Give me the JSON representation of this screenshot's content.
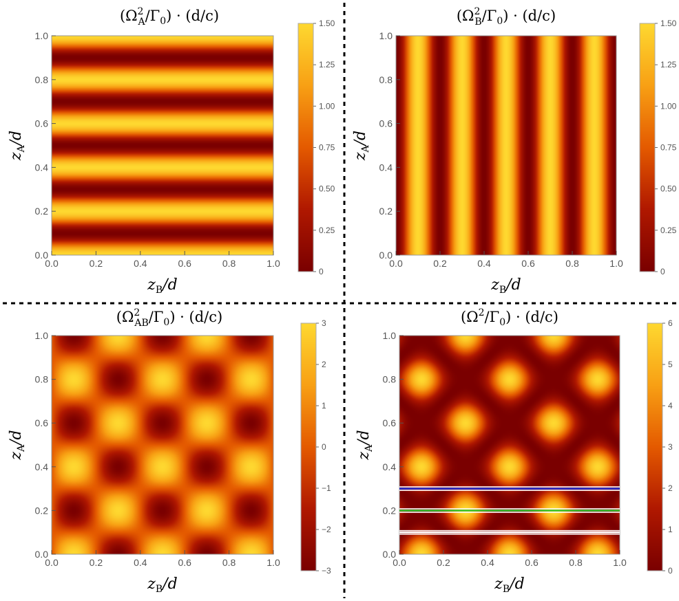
{
  "chart_data": [
    {
      "type": "heatmap",
      "title": "(Ω²_A/Γ₀) · (d/c)",
      "title_parts": {
        "pre": "(Ω",
        "sup": "2",
        "sub": "A",
        "post": "/Γ",
        "sub2": "0",
        "tail": ") · (d/c)"
      },
      "xlabel": {
        "main": "z",
        "sub": "B",
        "tail": "/d"
      },
      "ylabel": {
        "main": "z",
        "sub": "A",
        "tail": "/d"
      },
      "xlim": [
        0,
        1
      ],
      "ylim": [
        0,
        1
      ],
      "x_ticks": [
        "0.0",
        "0.2",
        "0.4",
        "0.6",
        "0.8",
        "1.0"
      ],
      "y_ticks": [
        "0.0",
        "0.2",
        "0.4",
        "0.6",
        "0.8",
        "1.0"
      ],
      "colorbar": {
        "min": 0,
        "max": 1.5,
        "ticks": [
          "0",
          "0.25",
          "0.50",
          "0.75",
          "1.00",
          "1.25",
          "1.50"
        ]
      },
      "pattern": "horizontal stripes: 1.5·cos²(5πz_A/d)"
    },
    {
      "type": "heatmap",
      "title": "(Ω²_B/Γ₀) · (d/c)",
      "title_parts": {
        "pre": "(Ω",
        "sup": "2",
        "sub": "B",
        "post": "/Γ",
        "sub2": "0",
        "tail": ") · (d/c)"
      },
      "xlabel": {
        "main": "z",
        "sub": "B",
        "tail": "/d"
      },
      "ylabel": {
        "main": "z",
        "sub": "A",
        "tail": "/d"
      },
      "xlim": [
        0,
        1
      ],
      "ylim": [
        0,
        1
      ],
      "x_ticks": [
        "0.0",
        "0.2",
        "0.4",
        "0.6",
        "0.8",
        "1.0"
      ],
      "y_ticks": [
        "0.0",
        "0.2",
        "0.4",
        "0.6",
        "0.8",
        "1.0"
      ],
      "colorbar": {
        "min": 0,
        "max": 1.5,
        "ticks": [
          "0",
          "0.25",
          "0.50",
          "0.75",
          "1.00",
          "1.25",
          "1.50"
        ]
      },
      "pattern": "vertical stripes: 1.5·sin²(5πz_B/d)"
    },
    {
      "type": "heatmap",
      "title": "(Ω²_AB/Γ₀) · (d/c)",
      "title_parts": {
        "pre": "(Ω",
        "sup": "2",
        "sub": "AB",
        "post": "/Γ",
        "sub2": "0",
        "tail": ") · (d/c)"
      },
      "xlabel": {
        "main": "z",
        "sub": "B",
        "tail": "/d"
      },
      "ylabel": {
        "main": "z",
        "sub": "A",
        "tail": "/d"
      },
      "xlim": [
        0,
        1
      ],
      "ylim": [
        0,
        1
      ],
      "x_ticks": [
        "0.0",
        "0.2",
        "0.4",
        "0.6",
        "0.8",
        "1.0"
      ],
      "y_ticks": [
        "0.0",
        "0.2",
        "0.4",
        "0.6",
        "0.8",
        "1.0"
      ],
      "colorbar": {
        "min": -3,
        "max": 3,
        "ticks": [
          "−3",
          "−2",
          "−1",
          "0",
          "1",
          "2",
          "3"
        ]
      },
      "pattern": "checkerboard: 3·cos(5πz_A/d)·sin(5πz_B/d)"
    },
    {
      "type": "heatmap",
      "title": "(Ω²/Γ₀) · (d/c)",
      "title_parts": {
        "pre": "(Ω",
        "sup": "2",
        "sub": "",
        "post": "/Γ",
        "sub2": "0",
        "tail": ") · (d/c)"
      },
      "xlabel": {
        "main": "z",
        "sub": "B",
        "tail": "/d"
      },
      "ylabel": {
        "main": "z",
        "sub": "A",
        "tail": "/d"
      },
      "xlim": [
        0,
        1
      ],
      "ylim": [
        0,
        1
      ],
      "x_ticks": [
        "0.0",
        "0.2",
        "0.4",
        "0.6",
        "0.8",
        "1.0"
      ],
      "y_ticks": [
        "0.0",
        "0.2",
        "0.4",
        "0.6",
        "0.8",
        "1.0"
      ],
      "colorbar": {
        "min": 0,
        "max": 6,
        "ticks": [
          "0",
          "1",
          "2",
          "3",
          "4",
          "5",
          "6"
        ]
      },
      "pattern": "sum: 1.5·cos²(5πz_A/d) + 1.5·sin²(5πz_B/d) + 3·cos(5πz_A/d)·sin(5πz_B/d)",
      "horizontal_lines": [
        {
          "z_A": 0.3,
          "color": "#1f2fd6"
        },
        {
          "z_A": 0.2,
          "color": "#2ec42e"
        },
        {
          "z_A": 0.1,
          "color": "#ffffff"
        }
      ]
    }
  ],
  "dividers": {
    "color": "#000000",
    "style": "dashed"
  }
}
